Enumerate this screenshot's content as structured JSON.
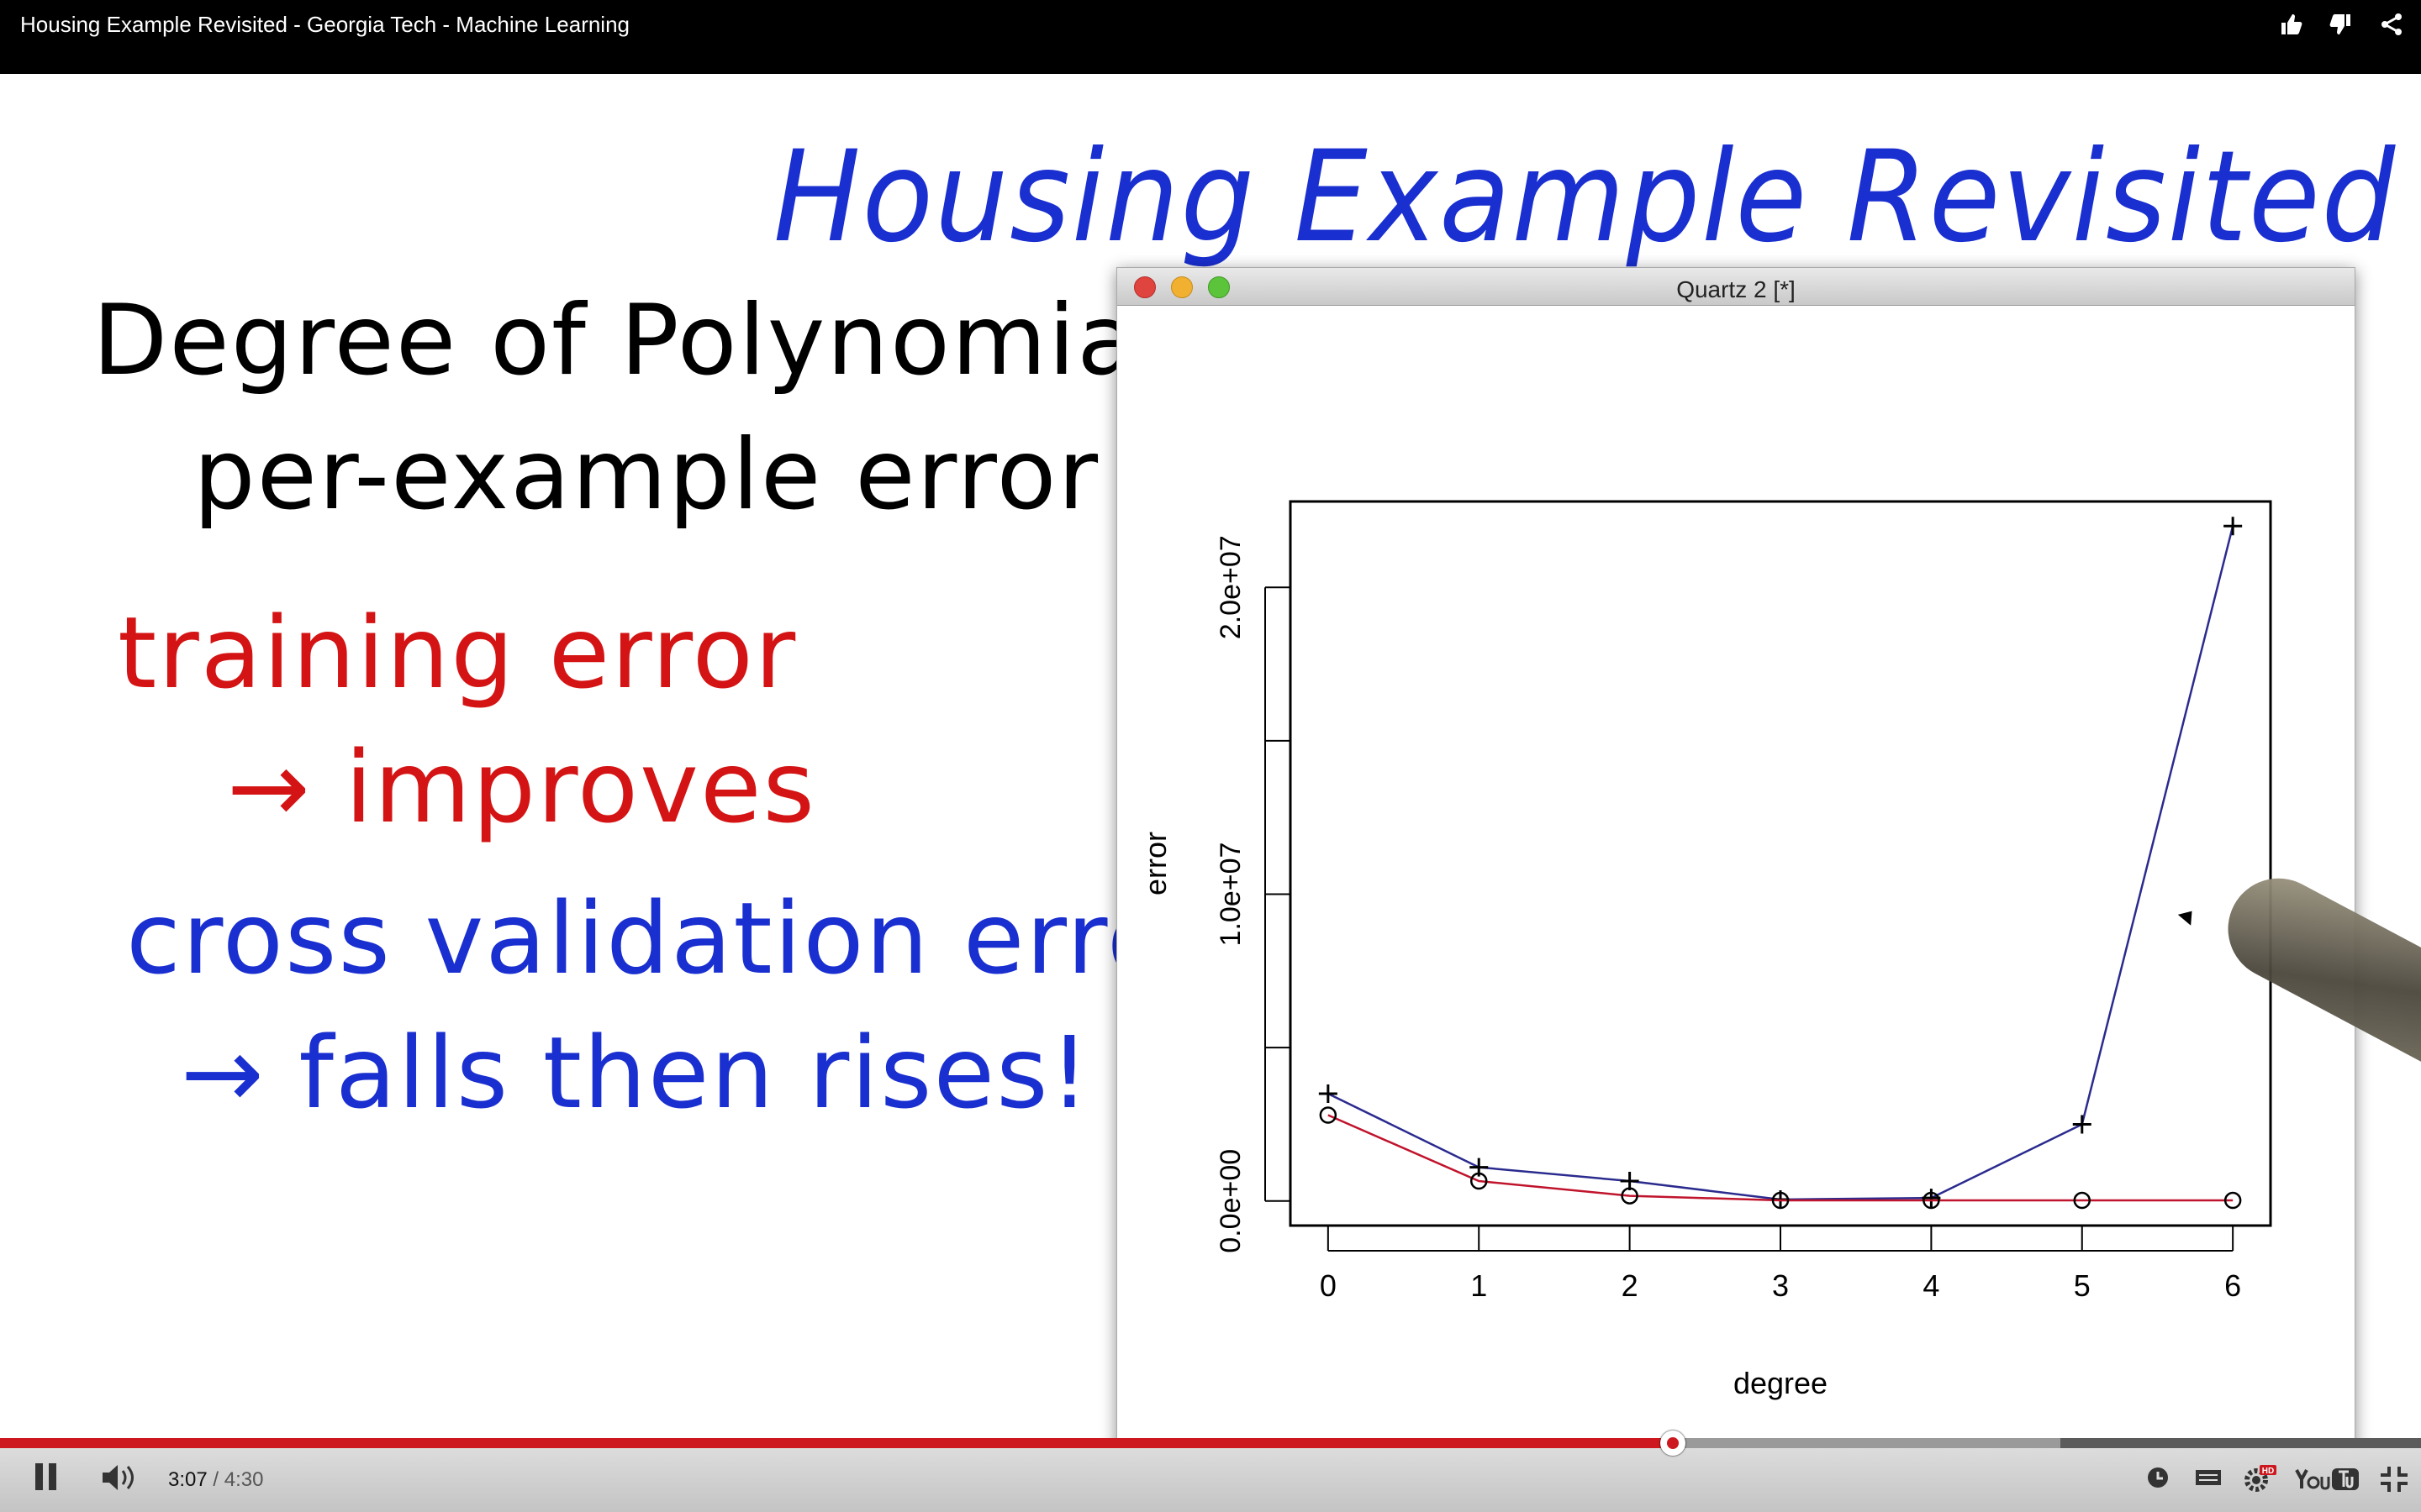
{
  "player_title": "Housing Example Revisited - Georgia Tech - Machine Learning",
  "top_icons": [
    "thumbs-up-icon",
    "thumbs-down-icon",
    "share-icon"
  ],
  "handwritten": {
    "title": "Housing Example Revisited",
    "line1": "Degree of Polynomial",
    "line2": "per-example error",
    "line3": "training error",
    "line4": "→ improves",
    "line5": "cross validation error",
    "line6": "→ falls then rises!"
  },
  "window": {
    "title": "Quartz 2 [*]"
  },
  "colors": {
    "handwriting_blue": "#1a2fd0",
    "handwriting_red": "#d41414",
    "series_blue": "#2b2b8f",
    "series_red": "#c0142c",
    "progress_red": "#cc181e"
  },
  "chart_data": {
    "type": "line",
    "xlabel": "degree",
    "ylabel": "error",
    "x": [
      0,
      1,
      2,
      3,
      4,
      5,
      6
    ],
    "xticks": [
      "0",
      "1",
      "2",
      "3",
      "4",
      "5",
      "6"
    ],
    "yticks": [
      {
        "value": 0,
        "label": "0.0e+00"
      },
      {
        "value": 5000000,
        "label": ""
      },
      {
        "value": 10000000,
        "label": "1.0e+07"
      },
      {
        "value": 15000000,
        "label": ""
      },
      {
        "value": 20000000,
        "label": "2.0e+07"
      }
    ],
    "xlim": [
      -0.25,
      6.25
    ],
    "ylim": [
      -800000,
      22800000
    ],
    "series": [
      {
        "marker": "plus",
        "color": "#2b2b8f",
        "values": [
          3500000,
          1100000,
          650000,
          50000,
          100000,
          2500000,
          22000000
        ]
      },
      {
        "marker": "circle",
        "color": "#c0142c",
        "values": [
          2800000,
          650000,
          170000,
          20000,
          20000,
          20000,
          20000
        ]
      }
    ]
  },
  "player": {
    "current_time": "3:07",
    "separator": " / ",
    "duration": "4:30",
    "progress_played": 0.691,
    "progress_buffered": 0.851,
    "hd_badge": "HD",
    "right_icons": [
      "watch-later-icon",
      "captions-icon",
      "settings-icon",
      "youtube-logo",
      "fullscreen-icon"
    ]
  }
}
